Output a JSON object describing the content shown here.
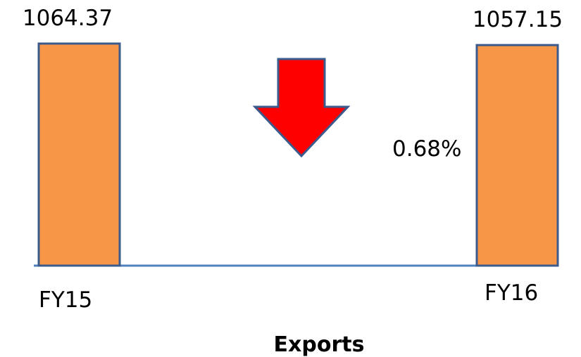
{
  "chart_data": {
    "type": "bar",
    "categories": [
      "FY15",
      "FY16"
    ],
    "values": [
      1064.37,
      1057.15
    ],
    "value_labels": [
      "1064.37",
      "1057.15"
    ],
    "xlabel": "Exports",
    "change_label": "0.68%",
    "change_direction": "down",
    "colors": {
      "bar_fill": "#F79646",
      "bar_border": "#3B5B8C",
      "baseline": "#4F81BD",
      "arrow_fill": "#FF0000",
      "arrow_border": "#3B5B8C"
    }
  }
}
